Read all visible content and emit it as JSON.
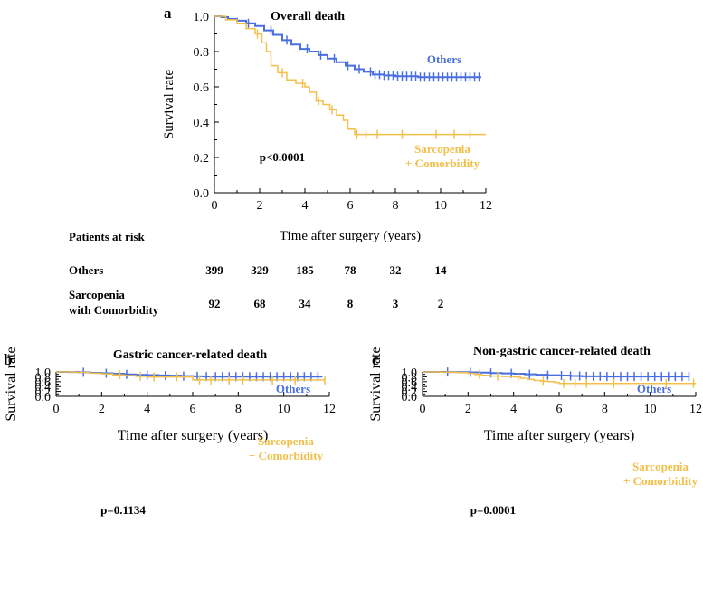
{
  "colors": {
    "others": "#4a6fe0",
    "sarcopenia": "#f2c04a",
    "axis": "#000000"
  },
  "risk_table": {
    "title": "Patients at risk",
    "rows": [
      {
        "label_lines": [
          "Others"
        ],
        "values": [
          "399",
          "329",
          "185",
          "78",
          "32",
          "14"
        ]
      },
      {
        "label_lines": [
          "Sarcopenia",
          "with Comorbidity"
        ],
        "values": [
          "92",
          "68",
          "34",
          "8",
          "3",
          "2"
        ]
      }
    ]
  },
  "chart_data": [
    {
      "panel": "a",
      "type": "line",
      "title": "Overall death",
      "xlabel": "Time after surgery (years)",
      "ylabel": "Survival rate",
      "xlim": [
        0,
        12
      ],
      "ylim": [
        0,
        1.0
      ],
      "xticks": [
        "0",
        "2",
        "4",
        "6",
        "8",
        "10",
        "12"
      ],
      "yticks": [
        "0.0",
        "0.2",
        "0.4",
        "0.6",
        "0.8",
        "1.0"
      ],
      "annotation": "p<0.0001",
      "series": [
        {
          "name": "Others",
          "label_lines": [
            "Others"
          ],
          "color_key": "others",
          "x": [
            0,
            0.3,
            0.6,
            1.0,
            1.4,
            1.8,
            2.2,
            2.6,
            3.0,
            3.4,
            3.8,
            4.2,
            4.6,
            5.0,
            5.4,
            5.8,
            6.2,
            6.6,
            7.0,
            7.5,
            8.0,
            8.5,
            9.0,
            9.5,
            10.0,
            10.5,
            11.0,
            11.8
          ],
          "y": [
            1.0,
            0.995,
            0.985,
            0.975,
            0.96,
            0.945,
            0.92,
            0.895,
            0.865,
            0.84,
            0.815,
            0.8,
            0.78,
            0.76,
            0.74,
            0.72,
            0.7,
            0.685,
            0.67,
            0.665,
            0.66,
            0.66,
            0.655,
            0.655,
            0.655,
            0.655,
            0.655,
            0.655
          ],
          "censor_x": [
            1.5,
            2.5,
            3.2,
            4.1,
            4.7,
            5.3,
            5.9,
            6.4,
            6.9,
            7.1,
            7.3,
            7.5,
            7.7,
            7.9,
            8.1,
            8.3,
            8.5,
            8.7,
            8.9,
            9.1,
            9.3,
            9.5,
            9.7,
            9.9,
            10.1,
            10.3,
            10.5,
            10.7,
            10.9,
            11.1,
            11.3,
            11.5,
            11.7
          ]
        },
        {
          "name": "Sarcopenia + Comorbidity",
          "label_lines": [
            "Sarcopenia",
            "+ Comorbidity"
          ],
          "color_key": "sarcopenia",
          "x": [
            0,
            0.5,
            1.0,
            1.4,
            1.8,
            2.1,
            2.3,
            2.5,
            2.8,
            3.2,
            3.6,
            4.0,
            4.2,
            4.5,
            4.8,
            5.1,
            5.4,
            5.7,
            5.9,
            6.2,
            7.0,
            8.0,
            9.0,
            10.0,
            11.0,
            12.0
          ],
          "y": [
            1.0,
            0.98,
            0.96,
            0.93,
            0.9,
            0.85,
            0.8,
            0.72,
            0.68,
            0.64,
            0.62,
            0.6,
            0.57,
            0.52,
            0.5,
            0.47,
            0.44,
            0.41,
            0.36,
            0.33,
            0.33,
            0.33,
            0.33,
            0.33,
            0.33,
            0.33
          ],
          "censor_x": [
            1.9,
            3.0,
            3.9,
            4.6,
            5.2,
            6.3,
            6.7,
            7.2,
            8.3,
            9.8,
            10.6,
            11.3
          ]
        }
      ]
    },
    {
      "panel": "b",
      "type": "line",
      "title": "Gastric cancer-related death",
      "xlabel": "Time after surgery (years)",
      "ylabel": "Survival rate",
      "xlim": [
        0,
        12
      ],
      "ylim": [
        0,
        1.0
      ],
      "xticks": [
        "0",
        "2",
        "4",
        "6",
        "8",
        "10",
        "12"
      ],
      "yticks": [
        "0.0",
        "0.2",
        "0.4",
        "0.6",
        "0.8",
        "1.0"
      ],
      "annotation": "p=0.1134",
      "series": [
        {
          "name": "Others",
          "label_lines": [
            "Others"
          ],
          "color_key": "others",
          "x": [
            0,
            0.5,
            1.0,
            1.5,
            2.0,
            2.5,
            3.0,
            3.5,
            4.0,
            4.5,
            5.0,
            5.5,
            6.0,
            6.5,
            7.0,
            8.0,
            9.0,
            10.0,
            11.0,
            11.7
          ],
          "y": [
            1.0,
            0.995,
            0.985,
            0.965,
            0.945,
            0.925,
            0.9,
            0.88,
            0.87,
            0.855,
            0.845,
            0.83,
            0.82,
            0.81,
            0.805,
            0.805,
            0.805,
            0.805,
            0.805,
            0.805
          ],
          "censor_x": [
            1.2,
            2.2,
            3.1,
            4.0,
            4.8,
            5.6,
            6.2,
            6.6,
            7.0,
            7.3,
            7.6,
            7.9,
            8.2,
            8.5,
            8.8,
            9.1,
            9.4,
            9.7,
            10.0,
            10.3,
            10.6,
            10.9,
            11.2,
            11.5
          ]
        },
        {
          "name": "Sarcopenia + Comorbidity",
          "label_lines": [
            "Sarcopenia",
            "+ Comorbidity"
          ],
          "color_key": "sarcopenia",
          "x": [
            0,
            0.8,
            1.5,
            2.0,
            2.5,
            3.0,
            3.5,
            4.0,
            5.0,
            5.9,
            6.0,
            8.0,
            10.0,
            11.8
          ],
          "y": [
            1.0,
            0.98,
            0.95,
            0.92,
            0.88,
            0.85,
            0.82,
            0.79,
            0.79,
            0.79,
            0.67,
            0.67,
            0.67,
            0.67
          ],
          "censor_x": [
            2.8,
            3.7,
            4.3,
            5.3,
            6.3,
            6.8,
            7.6,
            8.2,
            9.5,
            10.5,
            11.8
          ]
        }
      ]
    },
    {
      "panel": "c",
      "type": "line",
      "title": "Non-gastric cancer-related death",
      "xlabel": "Time after surgery (years)",
      "ylabel": "Survival rate",
      "xlim": [
        0,
        12
      ],
      "ylim": [
        0,
        1.0
      ],
      "xticks": [
        "0",
        "2",
        "4",
        "6",
        "8",
        "10",
        "12"
      ],
      "yticks": [
        "0.0",
        "0.2",
        "0.4",
        "0.6",
        "0.8",
        "1.0"
      ],
      "annotation": "p=0.0001",
      "series": [
        {
          "name": "Others",
          "label_lines": [
            "Others"
          ],
          "color_key": "others",
          "x": [
            0,
            0.5,
            1.0,
            1.5,
            2.0,
            2.5,
            3.0,
            3.5,
            4.0,
            4.5,
            5.0,
            5.5,
            6.0,
            6.5,
            7.0,
            8.0,
            9.0,
            10.0,
            11.0,
            11.7
          ],
          "y": [
            1.0,
            0.998,
            0.995,
            0.99,
            0.98,
            0.97,
            0.955,
            0.94,
            0.925,
            0.905,
            0.885,
            0.865,
            0.85,
            0.835,
            0.82,
            0.81,
            0.81,
            0.81,
            0.81,
            0.81
          ],
          "censor_x": [
            1.1,
            2.1,
            3.0,
            3.9,
            4.7,
            5.5,
            6.1,
            6.5,
            6.9,
            7.2,
            7.5,
            7.8,
            8.1,
            8.4,
            8.7,
            9.0,
            9.3,
            9.6,
            9.9,
            10.2,
            10.5,
            10.8,
            11.1,
            11.4,
            11.7
          ]
        },
        {
          "name": "Sarcopenia + Comorbidity",
          "label_lines": [
            "Sarcopenia",
            "+ Comorbidity"
          ],
          "color_key": "sarcopenia",
          "x": [
            0,
            0.8,
            1.5,
            2.0,
            2.3,
            2.6,
            3.0,
            3.5,
            4.0,
            4.3,
            4.6,
            4.9,
            5.2,
            5.5,
            5.8,
            6.0,
            7.0,
            8.0,
            9.0,
            10.0,
            11.0,
            12.0
          ],
          "y": [
            1.0,
            0.99,
            0.97,
            0.94,
            0.9,
            0.86,
            0.83,
            0.81,
            0.79,
            0.74,
            0.69,
            0.65,
            0.62,
            0.6,
            0.57,
            0.53,
            0.53,
            0.53,
            0.53,
            0.53,
            0.53,
            0.53
          ],
          "censor_x": [
            2.5,
            3.3,
            4.2,
            5.3,
            6.2,
            6.7,
            7.2,
            8.4,
            10.7,
            11.9
          ]
        }
      ]
    }
  ]
}
